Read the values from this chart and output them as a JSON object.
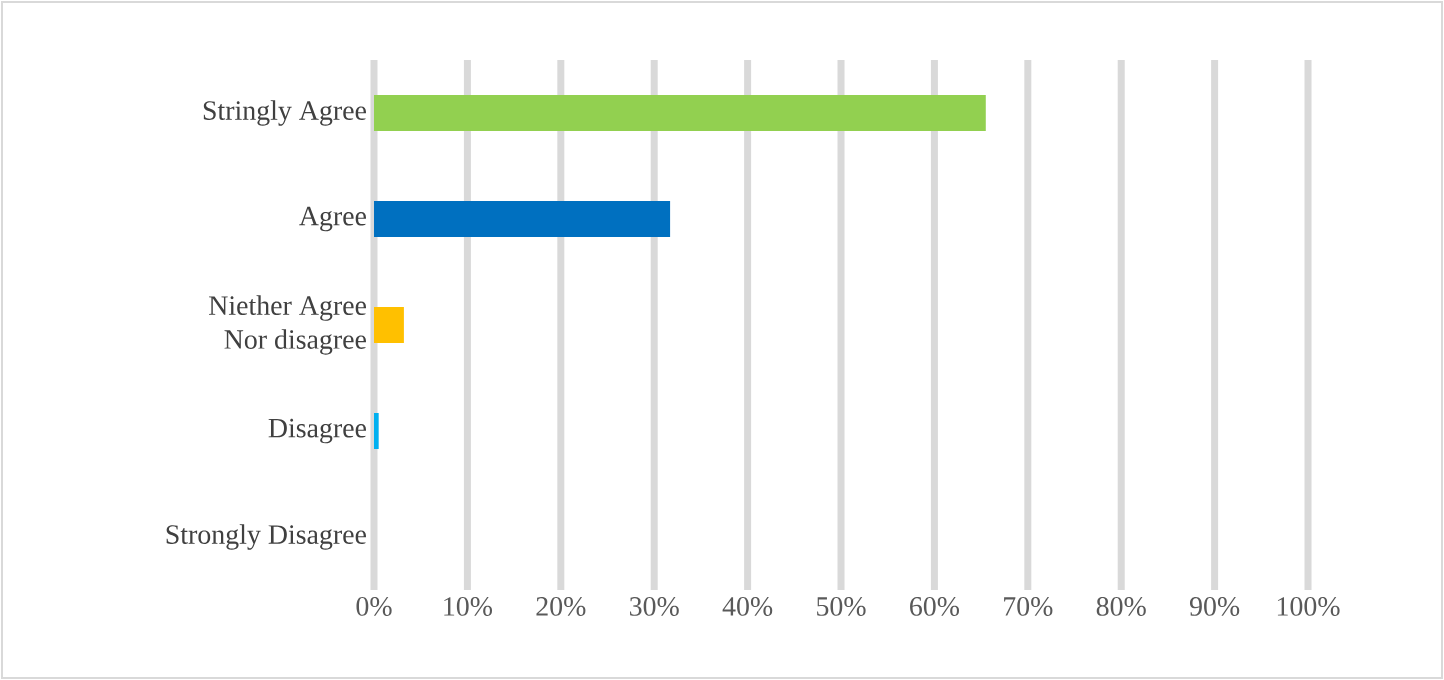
{
  "chart_data": {
    "type": "bar",
    "orientation": "horizontal",
    "categories": [
      "Stringly Agree",
      "Agree",
      "Niether Agree Nor disagree",
      "Disagree",
      "Strongly Disagree"
    ],
    "values": [
      65.5,
      31.7,
      3.2,
      0.5,
      0
    ],
    "colors": [
      "#92d050",
      "#0070c0",
      "#ffc000",
      "#00b0f0",
      "#a5a5a5"
    ],
    "xlim": [
      0,
      100
    ],
    "xticks": [
      {
        "value": 0,
        "label": "0%"
      },
      {
        "value": 10,
        "label": "10%"
      },
      {
        "value": 20,
        "label": "20%"
      },
      {
        "value": 30,
        "label": "30%"
      },
      {
        "value": 40,
        "label": "40%"
      },
      {
        "value": 50,
        "label": "50%"
      },
      {
        "value": 60,
        "label": "60%"
      },
      {
        "value": 70,
        "label": "70%"
      },
      {
        "value": 80,
        "label": "80%"
      },
      {
        "value": 90,
        "label": "90%"
      },
      {
        "value": 100,
        "label": "100%"
      }
    ],
    "grid": "x"
  }
}
